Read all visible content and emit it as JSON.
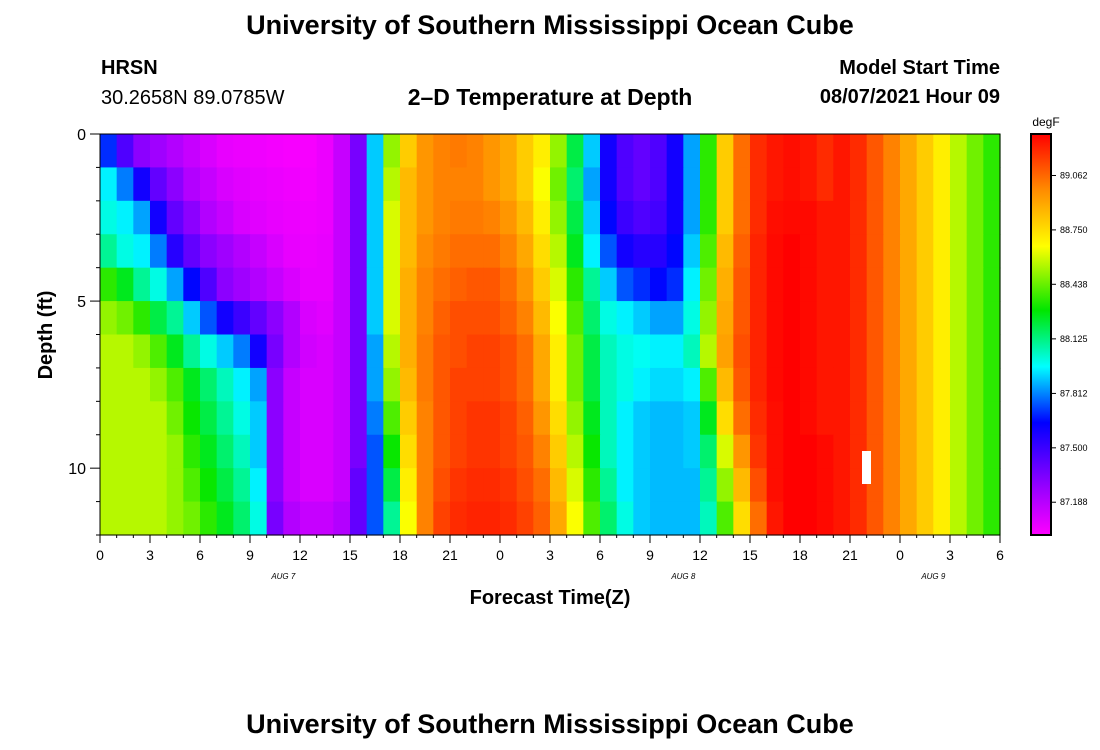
{
  "header": {
    "title": "University of Southern Mississippi Ocean Cube",
    "station": "HRSN",
    "coords": "30.2658N  89.0785W",
    "plot_title": "2–D Temperature at Depth",
    "start_label": "Model Start Time",
    "start_value": "08/07/2021 Hour 09"
  },
  "footer": {
    "title": "University of Southern Mississippi Ocean Cube"
  },
  "chart_data": {
    "type": "heatmap",
    "title": "2–D Temperature at Depth",
    "xlabel": "Forecast Time(Z)",
    "ylabel": "Depth (ft)",
    "x_ticks": [
      "0",
      "3",
      "6",
      "9",
      "12",
      "15",
      "18",
      "21",
      "0",
      "3",
      "6",
      "9",
      "12",
      "15",
      "18",
      "21",
      "0",
      "3",
      "6"
    ],
    "x_range_hours": [
      0,
      54
    ],
    "date_labels": [
      {
        "hour": 11,
        "label": "AUG 7"
      },
      {
        "hour": 35,
        "label": "AUG 8"
      },
      {
        "hour": 50,
        "label": "AUG 9"
      }
    ],
    "y_ticks": [
      "0",
      "5",
      "10"
    ],
    "y_range_ft": [
      0,
      12
    ],
    "colorbar": {
      "unit": "degF",
      "min": 87.0,
      "max": 89.3,
      "tick_labels": [
        "87.188",
        "87.500",
        "87.812",
        "88.125",
        "88.438",
        "88.750",
        "89.062"
      ],
      "tick_values": [
        87.188,
        87.5,
        87.812,
        88.125,
        88.438,
        88.75,
        89.062
      ]
    },
    "depth_levels_ft": [
      0.5,
      1.5,
      2.5,
      3.5,
      4.5,
      5.5,
      6.5,
      7.5,
      8.5,
      9.5,
      10.5,
      11.5
    ],
    "hours": [
      0,
      1,
      2,
      3,
      4,
      5,
      6,
      7,
      8,
      9,
      10,
      11,
      12,
      13,
      14,
      15,
      16,
      17,
      18,
      19,
      20,
      21,
      22,
      23,
      24,
      25,
      26,
      27,
      28,
      29,
      30,
      31,
      32,
      33,
      34,
      35,
      36,
      37,
      38,
      39,
      40,
      41,
      42,
      43,
      44,
      45,
      46,
      47,
      48,
      49,
      50,
      51,
      52,
      53
    ],
    "temperature_degF": [
      [
        87.7,
        87.45,
        87.3,
        87.25,
        87.2,
        87.15,
        87.1,
        87.06,
        87.05,
        87.04,
        87.03,
        87.02,
        87.02,
        87.05,
        87.15,
        87.35,
        87.9,
        88.5,
        88.8,
        88.95,
        89.0,
        89.02,
        89.0,
        88.95,
        88.9,
        88.8,
        88.7,
        88.5,
        88.2,
        87.9,
        87.6,
        87.45,
        87.4,
        87.45,
        87.6,
        87.85,
        88.35,
        88.8,
        89.05,
        89.2,
        89.25,
        89.27,
        89.25,
        89.2,
        89.25,
        89.2,
        89.1,
        89.0,
        88.9,
        88.8,
        88.7,
        88.55,
        88.45,
        88.35
      ],
      [
        87.95,
        87.8,
        87.6,
        87.4,
        87.3,
        87.2,
        87.15,
        87.1,
        87.08,
        87.06,
        87.05,
        87.04,
        87.03,
        87.05,
        87.15,
        87.35,
        87.9,
        88.55,
        88.85,
        88.95,
        89.0,
        89.0,
        89.0,
        88.95,
        88.9,
        88.8,
        88.65,
        88.45,
        88.15,
        87.85,
        87.6,
        87.45,
        87.4,
        87.45,
        87.6,
        87.85,
        88.35,
        88.8,
        89.05,
        89.2,
        89.25,
        89.27,
        89.25,
        89.2,
        89.25,
        89.2,
        89.1,
        89.0,
        88.9,
        88.8,
        88.7,
        88.55,
        88.45,
        88.35
      ],
      [
        88.0,
        87.95,
        87.85,
        87.6,
        87.4,
        87.3,
        87.2,
        87.15,
        87.1,
        87.08,
        87.06,
        87.05,
        87.04,
        87.05,
        87.15,
        87.35,
        87.9,
        88.6,
        88.85,
        88.95,
        89.0,
        89.02,
        89.02,
        89.0,
        88.95,
        88.85,
        88.7,
        88.5,
        88.2,
        87.9,
        87.65,
        87.5,
        87.45,
        87.48,
        87.6,
        87.85,
        88.35,
        88.8,
        89.05,
        89.2,
        89.27,
        89.28,
        89.28,
        89.25,
        89.25,
        89.2,
        89.1,
        89.0,
        88.9,
        88.8,
        88.7,
        88.55,
        88.45,
        88.35
      ],
      [
        88.1,
        88.0,
        87.95,
        87.8,
        87.55,
        87.4,
        87.3,
        87.25,
        87.2,
        87.15,
        87.1,
        87.06,
        87.05,
        87.06,
        87.15,
        87.35,
        87.9,
        88.6,
        88.85,
        88.98,
        89.02,
        89.05,
        89.05,
        89.05,
        89.0,
        88.9,
        88.75,
        88.55,
        88.25,
        87.95,
        87.75,
        87.6,
        87.55,
        87.55,
        87.65,
        87.9,
        88.4,
        88.85,
        89.08,
        89.22,
        89.28,
        89.3,
        89.28,
        89.25,
        89.25,
        89.2,
        89.1,
        89.0,
        88.9,
        88.8,
        88.7,
        88.55,
        88.45,
        88.35
      ],
      [
        88.35,
        88.25,
        88.1,
        88.0,
        87.85,
        87.65,
        87.45,
        87.3,
        87.25,
        87.2,
        87.15,
        87.1,
        87.06,
        87.06,
        87.15,
        87.35,
        87.9,
        88.6,
        88.88,
        89.0,
        89.05,
        89.08,
        89.1,
        89.1,
        89.05,
        88.95,
        88.8,
        88.6,
        88.35,
        88.1,
        87.9,
        87.75,
        87.7,
        87.65,
        87.7,
        87.95,
        88.45,
        88.88,
        89.1,
        89.22,
        89.28,
        89.3,
        89.28,
        89.25,
        89.25,
        89.2,
        89.1,
        89.0,
        88.9,
        88.8,
        88.7,
        88.55,
        88.45,
        88.35
      ],
      [
        88.5,
        88.45,
        88.35,
        88.2,
        88.1,
        87.9,
        87.75,
        87.6,
        87.5,
        87.4,
        87.3,
        87.2,
        87.1,
        87.08,
        87.15,
        87.35,
        87.9,
        88.6,
        88.88,
        89.0,
        89.08,
        89.12,
        89.12,
        89.12,
        89.08,
        89.0,
        88.85,
        88.65,
        88.4,
        88.15,
        88.0,
        87.95,
        87.9,
        87.85,
        87.85,
        88.0,
        88.5,
        88.9,
        89.1,
        89.22,
        89.28,
        89.3,
        89.28,
        89.25,
        89.25,
        89.2,
        89.1,
        89.0,
        88.9,
        88.8,
        88.7,
        88.55,
        88.45,
        88.35
      ],
      [
        88.55,
        88.55,
        88.5,
        88.4,
        88.25,
        88.1,
        88.0,
        87.9,
        87.8,
        87.6,
        87.35,
        87.2,
        87.12,
        87.1,
        87.15,
        87.35,
        87.85,
        88.55,
        88.88,
        89.02,
        89.1,
        89.12,
        89.15,
        89.15,
        89.12,
        89.05,
        88.9,
        88.7,
        88.45,
        88.2,
        88.05,
        88.0,
        87.98,
        87.95,
        87.95,
        88.05,
        88.55,
        88.92,
        89.12,
        89.22,
        89.28,
        89.3,
        89.28,
        89.25,
        89.25,
        89.2,
        89.1,
        89.0,
        88.9,
        88.8,
        88.7,
        88.55,
        88.45,
        88.35
      ],
      [
        88.55,
        88.55,
        88.55,
        88.5,
        88.4,
        88.25,
        88.15,
        88.05,
        87.95,
        87.85,
        87.3,
        87.15,
        87.1,
        87.1,
        87.15,
        87.35,
        87.85,
        88.5,
        88.85,
        89.02,
        89.1,
        89.15,
        89.15,
        89.15,
        89.12,
        89.05,
        88.9,
        88.7,
        88.45,
        88.2,
        88.05,
        88.0,
        87.95,
        87.92,
        87.92,
        87.95,
        88.4,
        88.85,
        89.1,
        89.22,
        89.28,
        89.3,
        89.28,
        89.25,
        89.25,
        89.2,
        89.1,
        89.0,
        88.9,
        88.8,
        88.7,
        88.55,
        88.45,
        88.35
      ],
      [
        88.55,
        88.55,
        88.55,
        88.55,
        88.45,
        88.3,
        88.2,
        88.1,
        88.0,
        87.9,
        87.3,
        87.15,
        87.1,
        87.1,
        87.15,
        87.35,
        87.8,
        88.4,
        88.8,
        89.0,
        89.1,
        89.15,
        89.18,
        89.18,
        89.15,
        89.08,
        88.95,
        88.75,
        88.5,
        88.25,
        88.05,
        87.95,
        87.9,
        87.88,
        87.88,
        87.9,
        88.25,
        88.75,
        89.05,
        89.2,
        89.27,
        89.3,
        89.28,
        89.25,
        89.25,
        89.2,
        89.1,
        89.0,
        88.9,
        88.8,
        88.7,
        88.55,
        88.45,
        88.35
      ],
      [
        88.55,
        88.55,
        88.55,
        88.55,
        88.5,
        88.35,
        88.25,
        88.15,
        88.05,
        87.9,
        87.3,
        87.15,
        87.1,
        87.1,
        87.15,
        87.35,
        87.75,
        88.3,
        88.75,
        89.0,
        89.1,
        89.15,
        89.18,
        89.18,
        89.15,
        89.1,
        89.0,
        88.8,
        88.55,
        88.3,
        88.05,
        87.95,
        87.9,
        87.88,
        87.88,
        87.9,
        88.15,
        88.6,
        88.95,
        89.18,
        89.27,
        89.3,
        89.3,
        89.28,
        89.25,
        89.2,
        89.1,
        89.0,
        88.9,
        88.8,
        88.7,
        88.55,
        88.45,
        88.35
      ],
      [
        88.55,
        88.55,
        88.55,
        88.55,
        88.5,
        88.4,
        88.3,
        88.2,
        88.1,
        87.95,
        87.3,
        87.15,
        87.1,
        87.1,
        87.15,
        87.4,
        87.75,
        88.2,
        88.7,
        89.0,
        89.12,
        89.18,
        89.2,
        89.2,
        89.18,
        89.12,
        89.05,
        88.85,
        88.6,
        88.35,
        88.1,
        87.95,
        87.9,
        87.88,
        87.88,
        87.88,
        88.1,
        88.5,
        88.85,
        89.12,
        89.27,
        89.3,
        89.3,
        89.28,
        89.25,
        89.2,
        89.1,
        89.0,
        88.9,
        88.8,
        88.7,
        88.55,
        88.45,
        88.35
      ],
      [
        88.55,
        88.55,
        88.55,
        88.55,
        88.5,
        88.45,
        88.35,
        88.25,
        88.15,
        88.0,
        87.35,
        87.2,
        87.15,
        87.15,
        87.2,
        87.4,
        87.75,
        88.1,
        88.65,
        89.0,
        89.15,
        89.2,
        89.22,
        89.22,
        89.2,
        89.15,
        89.08,
        88.9,
        88.65,
        88.4,
        88.15,
        88.0,
        87.9,
        87.88,
        87.88,
        87.88,
        88.05,
        88.4,
        88.75,
        89.05,
        89.25,
        89.3,
        89.3,
        89.28,
        89.25,
        89.2,
        89.1,
        89.0,
        88.9,
        88.8,
        88.7,
        88.55,
        88.45,
        88.35
      ]
    ]
  }
}
